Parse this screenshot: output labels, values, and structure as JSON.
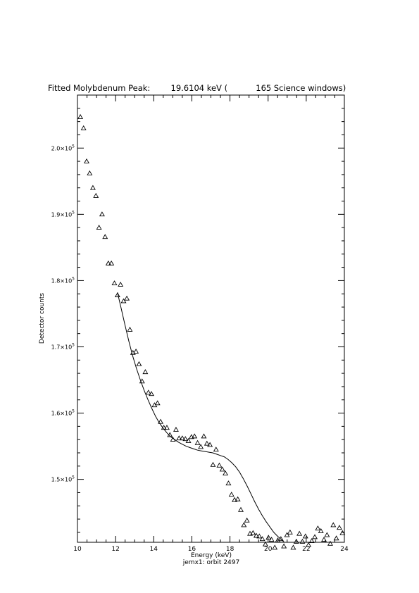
{
  "chart_data": {
    "type": "scatter",
    "title": "Fitted Molybdenum Peak:        19.6104 keV (           165 Science windows)",
    "xlabel": "Energy (keV)",
    "ylabel": "Detector counts",
    "footer": "jemx1: orbit 2497",
    "xlim": [
      10,
      24
    ],
    "ylim": [
      140500,
      208000
    ],
    "x_ticks": [
      10,
      12,
      14,
      16,
      18,
      20,
      22,
      24
    ],
    "x_tick_labels": [
      "10",
      "12",
      "14",
      "16",
      "18",
      "20",
      "22",
      "24"
    ],
    "y_ticks": [
      {
        "value": 150000,
        "mantissa": "1.5×10",
        "exp": "5"
      },
      {
        "value": 160000,
        "mantissa": "1.6×10",
        "exp": "5"
      },
      {
        "value": 170000,
        "mantissa": "1.7×10",
        "exp": "5"
      },
      {
        "value": 180000,
        "mantissa": "1.8×10",
        "exp": "5"
      },
      {
        "value": 190000,
        "mantissa": "1.9×10",
        "exp": "5"
      },
      {
        "value": 200000,
        "mantissa": "2.0×10",
        "exp": "5"
      }
    ],
    "marker": "open-triangle",
    "series": [
      {
        "kind": "points",
        "x": [
          10.15,
          10.32,
          10.48,
          10.64,
          10.81,
          10.97,
          11.13,
          11.29,
          11.45,
          11.62,
          11.78,
          11.94,
          12.1,
          12.26,
          12.42,
          12.59,
          12.75,
          12.91,
          13.07,
          13.23,
          13.39,
          13.56,
          13.72,
          13.88,
          14.04,
          14.2,
          14.36,
          14.53,
          14.69,
          14.85,
          15.01,
          15.17,
          15.33,
          15.5,
          15.66,
          15.82,
          15.98,
          16.14,
          16.3,
          16.47,
          16.63,
          16.79,
          16.95,
          17.11,
          17.27,
          17.44,
          17.6,
          17.76,
          17.92,
          18.08,
          18.24,
          18.41,
          18.57,
          18.73,
          18.89,
          19.05,
          19.21,
          19.38,
          19.54,
          19.7,
          19.86,
          20.02,
          20.18,
          20.35,
          20.51,
          20.67,
          20.83,
          20.99,
          21.15,
          21.32,
          21.48,
          21.64,
          21.8,
          21.96,
          22.12,
          22.29,
          22.45,
          22.61,
          22.77,
          22.93,
          23.09,
          23.26,
          23.42,
          23.58,
          23.74,
          23.9
        ],
        "y": [
          204700,
          203000,
          198000,
          196200,
          194000,
          192800,
          188000,
          190000,
          186600,
          182600,
          182600,
          179600,
          177800,
          179400,
          176900,
          177300,
          172600,
          169100,
          169300,
          167400,
          164800,
          166200,
          163100,
          162900,
          161200,
          161500,
          158700,
          157800,
          157800,
          156700,
          156000,
          157500,
          156200,
          156200,
          156100,
          155800,
          156400,
          156500,
          155500,
          154900,
          156500,
          155400,
          155200,
          152200,
          154500,
          152100,
          151500,
          150900,
          149400,
          147700,
          146900,
          147000,
          145400,
          143100,
          143800,
          141800,
          141900,
          141500,
          141400,
          141000,
          140200,
          141200,
          140900,
          139600,
          140800,
          141000,
          139900,
          141600,
          142000,
          139600,
          140600,
          141800,
          140600,
          141400,
          140100,
          140700,
          141300,
          142600,
          142200,
          140900,
          141600,
          140300,
          143100,
          141100,
          142700,
          141900
        ]
      },
      {
        "kind": "fit-line",
        "x": [
          12.1,
          12.3,
          12.5,
          12.7,
          12.9,
          13.1,
          13.3,
          13.5,
          13.7,
          13.9,
          14.1,
          14.3,
          14.5,
          14.7,
          14.9,
          15.1,
          15.3,
          15.5,
          15.7,
          15.9,
          16.1,
          16.3,
          16.5,
          16.7,
          16.9,
          17.1,
          17.3,
          17.5,
          17.7,
          17.9,
          18.1,
          18.3,
          18.5,
          18.7,
          18.9,
          19.1,
          19.3,
          19.5,
          19.7,
          19.9,
          20.1,
          20.3,
          20.5,
          20.7,
          20.85
        ],
        "y": [
          178200,
          175700,
          173200,
          170800,
          168600,
          166700,
          165000,
          163400,
          162000,
          160700,
          159500,
          158500,
          157700,
          157000,
          156400,
          156000,
          155600,
          155300,
          155000,
          154800,
          154600,
          154400,
          154300,
          154200,
          154100,
          154000,
          153800,
          153600,
          153400,
          153000,
          152500,
          151900,
          151100,
          150100,
          149000,
          147800,
          146600,
          145500,
          144500,
          143600,
          142800,
          142000,
          141400,
          140900,
          140500
        ]
      }
    ]
  }
}
